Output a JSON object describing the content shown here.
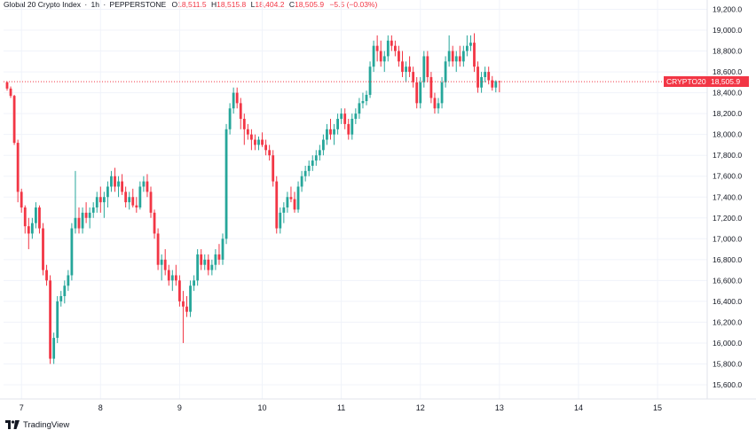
{
  "header": {
    "symbol": "Global 20 Crypto Index",
    "interval": "1h",
    "exchange": "PEPPERSTONE",
    "open_label": "O",
    "open_value": "18,511.5",
    "high_label": "H",
    "high_value": "18,515.8",
    "low_label": "L",
    "low_value": "18,404.2",
    "close_label": "C",
    "close_value": "18,505.9",
    "change": "−5.5 (−0.03%)"
  },
  "price_tag": {
    "symbol": "CRYPTO20",
    "value": "18,505.9",
    "color": "#f23645"
  },
  "footer": {
    "brand": "TradingView"
  },
  "colors": {
    "up": "#26a69a",
    "down": "#f23645",
    "grid": "#f0f3fa",
    "text": "#131722"
  },
  "chart_data": {
    "type": "candlestick",
    "title": "Global 20 Crypto Index · 1h · PEPPERSTONE",
    "ylim": [
      15500,
      19300
    ],
    "y_ticks": [
      15600,
      15800,
      16000,
      16200,
      16400,
      16600,
      16800,
      17000,
      17200,
      17400,
      17600,
      17800,
      18000,
      18200,
      18400,
      18600,
      18800,
      19000,
      19200
    ],
    "y_tick_labels": [
      "15,600.0",
      "15,800.0",
      "16,000.0",
      "16,200.0",
      "16,400.0",
      "16,600.0",
      "16,800.0",
      "17,000.0",
      "17,200.0",
      "17,400.0",
      "17,600.0",
      "17,800.0",
      "18,000.0",
      "18,200.0",
      "18,400.0",
      "18,600.0",
      "18,800.0",
      "19,000.0",
      "19,200.0"
    ],
    "x_ticks": [
      "7",
      "8",
      "9",
      "10",
      "11",
      "12",
      "13",
      "14",
      "15"
    ],
    "x_tick_bar_index": [
      4,
      26,
      48,
      71,
      93,
      115,
      137,
      159,
      181
    ],
    "last_price": 18505.9,
    "candles": [
      [
        18500,
        18510,
        18420,
        18440
      ],
      [
        18440,
        18460,
        18350,
        18370
      ],
      [
        18370,
        18380,
        17900,
        17920
      ],
      [
        17920,
        17950,
        17350,
        17450
      ],
      [
        17450,
        17480,
        17250,
        17300
      ],
      [
        17300,
        17320,
        17050,
        17120
      ],
      [
        17120,
        17200,
        16900,
        17050
      ],
      [
        17050,
        17200,
        17000,
        17150
      ],
      [
        17150,
        17350,
        17100,
        17300
      ],
      [
        17300,
        17320,
        17050,
        17100
      ],
      [
        17100,
        17150,
        16650,
        16700
      ],
      [
        16700,
        16750,
        16550,
        16600
      ],
      [
        16600,
        16650,
        15800,
        15850
      ],
      [
        15850,
        16100,
        15800,
        16050
      ],
      [
        16050,
        16450,
        16000,
        16400
      ],
      [
        16400,
        16500,
        16350,
        16450
      ],
      [
        16450,
        16600,
        16380,
        16550
      ],
      [
        16550,
        16700,
        16500,
        16650
      ],
      [
        16650,
        17150,
        16600,
        17100
      ],
      [
        17100,
        17650,
        17050,
        17200
      ],
      [
        17200,
        17300,
        17050,
        17100
      ],
      [
        17100,
        17300,
        17050,
        17250
      ],
      [
        17250,
        17350,
        17150,
        17200
      ],
      [
        17200,
        17300,
        17100,
        17250
      ],
      [
        17250,
        17350,
        17200,
        17300
      ],
      [
        17300,
        17450,
        17250,
        17400
      ],
      [
        17400,
        17500,
        17250,
        17350
      ],
      [
        17350,
        17450,
        17200,
        17400
      ],
      [
        17400,
        17550,
        17300,
        17500
      ],
      [
        17500,
        17650,
        17450,
        17600
      ],
      [
        17600,
        17680,
        17450,
        17500
      ],
      [
        17500,
        17600,
        17400,
        17550
      ],
      [
        17550,
        17620,
        17420,
        17450
      ],
      [
        17450,
        17500,
        17300,
        17350
      ],
      [
        17350,
        17450,
        17280,
        17400
      ],
      [
        17400,
        17480,
        17300,
        17320
      ],
      [
        17320,
        17400,
        17250,
        17300
      ],
      [
        17300,
        17550,
        17280,
        17500
      ],
      [
        17500,
        17600,
        17450,
        17550
      ],
      [
        17550,
        17620,
        17400,
        17450
      ],
      [
        17450,
        17500,
        17200,
        17250
      ],
      [
        17250,
        17280,
        17000,
        17050
      ],
      [
        17050,
        17100,
        16700,
        16750
      ],
      [
        16750,
        16850,
        16600,
        16800
      ],
      [
        16800,
        16900,
        16650,
        16700
      ],
      [
        16700,
        16750,
        16550,
        16600
      ],
      [
        16600,
        16700,
        16500,
        16650
      ],
      [
        16650,
        16750,
        16550,
        16600
      ],
      [
        16600,
        16650,
        16350,
        16400
      ],
      [
        16400,
        16500,
        16000,
        16350
      ],
      [
        16350,
        16450,
        16250,
        16300
      ],
      [
        16300,
        16600,
        16250,
        16550
      ],
      [
        16550,
        16650,
        16500,
        16600
      ],
      [
        16600,
        16900,
        16550,
        16850
      ],
      [
        16850,
        16900,
        16700,
        16750
      ],
      [
        16750,
        16850,
        16700,
        16800
      ],
      [
        16800,
        16850,
        16650,
        16700
      ],
      [
        16700,
        16800,
        16650,
        16750
      ],
      [
        16750,
        16900,
        16700,
        16850
      ],
      [
        16850,
        16950,
        16750,
        16800
      ],
      [
        16800,
        17050,
        16750,
        17000
      ],
      [
        17000,
        18100,
        16950,
        18050
      ],
      [
        18050,
        18300,
        18000,
        18250
      ],
      [
        18250,
        18450,
        18200,
        18400
      ],
      [
        18400,
        18450,
        18250,
        18300
      ],
      [
        18300,
        18350,
        18050,
        18150
      ],
      [
        18150,
        18200,
        17900,
        18050
      ],
      [
        18050,
        18100,
        17950,
        18000
      ],
      [
        18000,
        18050,
        17850,
        17950
      ],
      [
        17950,
        18000,
        17850,
        17900
      ],
      [
        17900,
        17980,
        17850,
        17950
      ],
      [
        17950,
        18020,
        17880,
        17900
      ],
      [
        17900,
        17950,
        17800,
        17850
      ],
      [
        17850,
        17900,
        17750,
        17800
      ],
      [
        17800,
        17850,
        17500,
        17550
      ],
      [
        17550,
        17600,
        17050,
        17100
      ],
      [
        17100,
        17300,
        17050,
        17250
      ],
      [
        17250,
        17350,
        17150,
        17300
      ],
      [
        17300,
        17450,
        17250,
        17400
      ],
      [
        17400,
        17500,
        17350,
        17380
      ],
      [
        17380,
        17450,
        17250,
        17280
      ],
      [
        17280,
        17550,
        17250,
        17500
      ],
      [
        17500,
        17650,
        17450,
        17600
      ],
      [
        17600,
        17700,
        17550,
        17650
      ],
      [
        17650,
        17750,
        17600,
        17700
      ],
      [
        17700,
        17800,
        17650,
        17750
      ],
      [
        17750,
        17850,
        17700,
        17800
      ],
      [
        17800,
        17900,
        17750,
        17850
      ],
      [
        17850,
        18000,
        17800,
        17950
      ],
      [
        17950,
        18100,
        17900,
        18050
      ],
      [
        18050,
        18150,
        17950,
        18000
      ],
      [
        18000,
        18100,
        17900,
        18050
      ],
      [
        18050,
        18200,
        18000,
        18150
      ],
      [
        18150,
        18250,
        18100,
        18200
      ],
      [
        18200,
        18250,
        18050,
        18100
      ],
      [
        18100,
        18150,
        17950,
        18000
      ],
      [
        18000,
        18200,
        17950,
        18150
      ],
      [
        18150,
        18250,
        18100,
        18200
      ],
      [
        18200,
        18350,
        18150,
        18300
      ],
      [
        18300,
        18400,
        18250,
        18320
      ],
      [
        18320,
        18420,
        18280,
        18380
      ],
      [
        18380,
        18700,
        18350,
        18650
      ],
      [
        18650,
        18900,
        18600,
        18850
      ],
      [
        18850,
        18950,
        18700,
        18800
      ],
      [
        18800,
        18900,
        18650,
        18700
      ],
      [
        18700,
        18800,
        18600,
        18750
      ],
      [
        18750,
        18950,
        18700,
        18900
      ],
      [
        18900,
        18950,
        18800,
        18850
      ],
      [
        18850,
        18900,
        18750,
        18800
      ],
      [
        18800,
        18850,
        18650,
        18700
      ],
      [
        18700,
        18800,
        18550,
        18600
      ],
      [
        18600,
        18700,
        18500,
        18650
      ],
      [
        18650,
        18750,
        18550,
        18600
      ],
      [
        18600,
        18650,
        18450,
        18500
      ],
      [
        18500,
        18550,
        18250,
        18300
      ],
      [
        18300,
        18550,
        18250,
        18500
      ],
      [
        18500,
        18800,
        18450,
        18750
      ],
      [
        18750,
        18800,
        18500,
        18550
      ],
      [
        18550,
        18600,
        18300,
        18350
      ],
      [
        18350,
        18400,
        18200,
        18250
      ],
      [
        18250,
        18350,
        18200,
        18300
      ],
      [
        18300,
        18550,
        18250,
        18500
      ],
      [
        18500,
        18750,
        18450,
        18700
      ],
      [
        18700,
        18950,
        18650,
        18800
      ],
      [
        18800,
        18850,
        18650,
        18700
      ],
      [
        18700,
        18800,
        18600,
        18750
      ],
      [
        18750,
        18850,
        18650,
        18700
      ],
      [
        18700,
        18850,
        18650,
        18800
      ],
      [
        18800,
        18950,
        18750,
        18850
      ],
      [
        18850,
        18950,
        18800,
        18880
      ],
      [
        18880,
        18970,
        18600,
        18650
      ],
      [
        18650,
        18700,
        18400,
        18450
      ],
      [
        18450,
        18600,
        18400,
        18550
      ],
      [
        18550,
        18650,
        18500,
        18600
      ],
      [
        18600,
        18650,
        18480,
        18520
      ],
      [
        18520,
        18560,
        18420,
        18450
      ],
      [
        18450,
        18520,
        18404,
        18511
      ],
      [
        18511,
        18516,
        18404,
        18506
      ]
    ]
  }
}
